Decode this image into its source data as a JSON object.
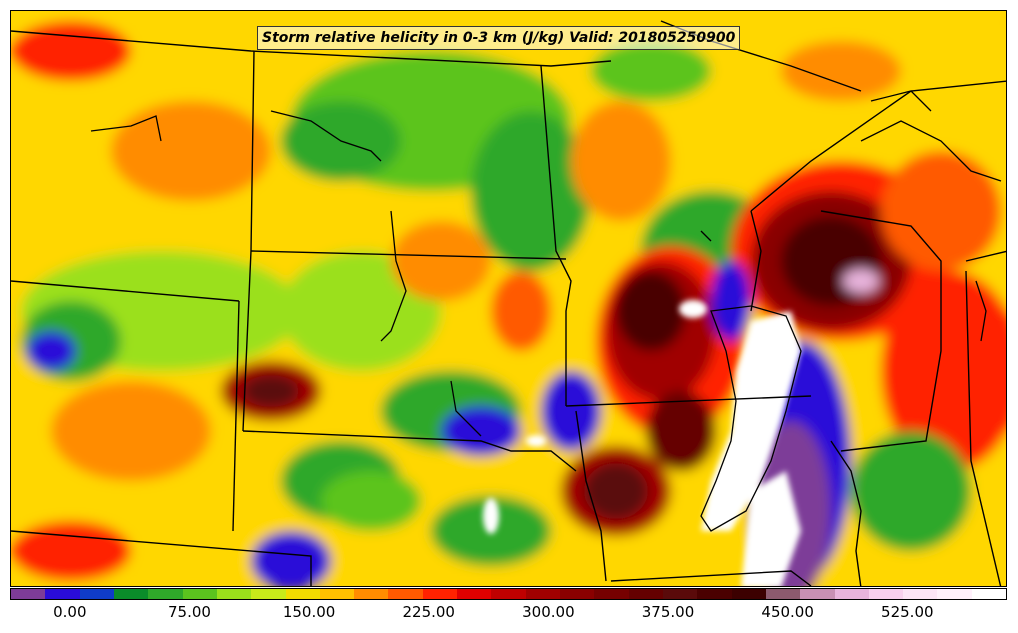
{
  "title": "Storm relative helicity in 0-3 km (J/kg) Valid: 201805250900",
  "colorbar": {
    "colors": [
      "#7d3c98",
      "#2a0cd8",
      "#0f3cc8",
      "#0a8c2a",
      "#2fa82a",
      "#5bc41e",
      "#9be01b",
      "#c8ea1a",
      "#f2dc00",
      "#ffc000",
      "#ff8c00",
      "#ff5a00",
      "#ff2200",
      "#e00000",
      "#bf0000",
      "#a00000",
      "#8a0000",
      "#760000",
      "#650000",
      "#5a0a0a",
      "#4a0000",
      "#3c0000",
      "#8c5a6e",
      "#c890b4",
      "#e8b4dc",
      "#f8d0ee",
      "#fce4f6",
      "#fff0fb",
      "#ffffff"
    ],
    "ticks": [
      "0.00",
      "75.00",
      "150.00",
      "225.00",
      "300.00",
      "375.00",
      "450.00",
      "525.00"
    ],
    "min": -37.5,
    "max": 587.5
  },
  "map": {
    "background_color": "#ffd700",
    "region": "Upper Midwest and Northern Plains, USA"
  }
}
